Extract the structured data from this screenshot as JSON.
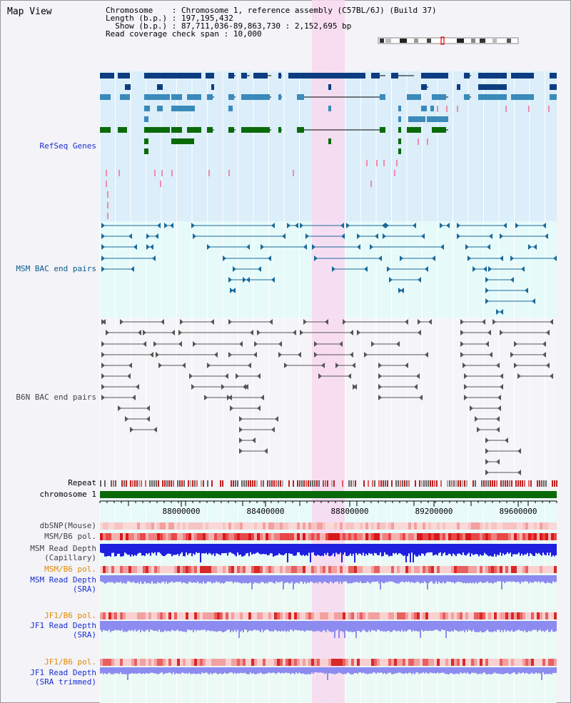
{
  "view": {
    "title": "Map View",
    "chromosome_label": "Chromosome",
    "chromosome_value": "Chromosome 1, reference assembly (C57BL/6J) (Build 37)",
    "length_label": "Length (b.p.)",
    "length_value": "197,195,432",
    "show_label": "Show (b.p.)",
    "show_value": "87,711,036-89,863,730 : 2,152,695 bp",
    "span_label": "Read coverage check span",
    "span_value": "10,000"
  },
  "tracks": {
    "refseq": "RefSeq Genes",
    "msm_bac": "MSM BAC end pairs",
    "b6n_bac": "B6N BAC end pairs",
    "repeat": "Repeat",
    "chromosome": "chromosome 1",
    "dbsnp": "dbSNP(Mouse)",
    "msm_b6_pol_1": "MSM/B6 pol.",
    "msm_depth_cap": "MSM Read Depth\n(Capillary)",
    "msm_b6_pol_2": "MSM/B6 pol.",
    "msm_depth_sra": "MSM Read Depth\n(SRA)",
    "jf1_b6_pol_1": "JF1/B6 pol.",
    "jf1_depth_sra": "JF1 Read Depth\n(SRA)",
    "jf1_b6_pol_2": "JF1/B6 pol.",
    "jf1_depth_trim": "JF1 Read Depth\n(SRA trimmed)"
  },
  "axis": {
    "ticks": [
      "88000000",
      "88400000",
      "88800000",
      "89200000",
      "89600000"
    ]
  },
  "colors": {
    "refseq_bg": "#dbeef9",
    "bac_bg": "#e6fafa",
    "b6n_bg": "#f5f5f8",
    "highlight": "#f8d8f0",
    "chrom_bar": "#0a6a0a",
    "depth_blue": "#1f1fe0",
    "depth_light": "#8c8cf0"
  }
}
